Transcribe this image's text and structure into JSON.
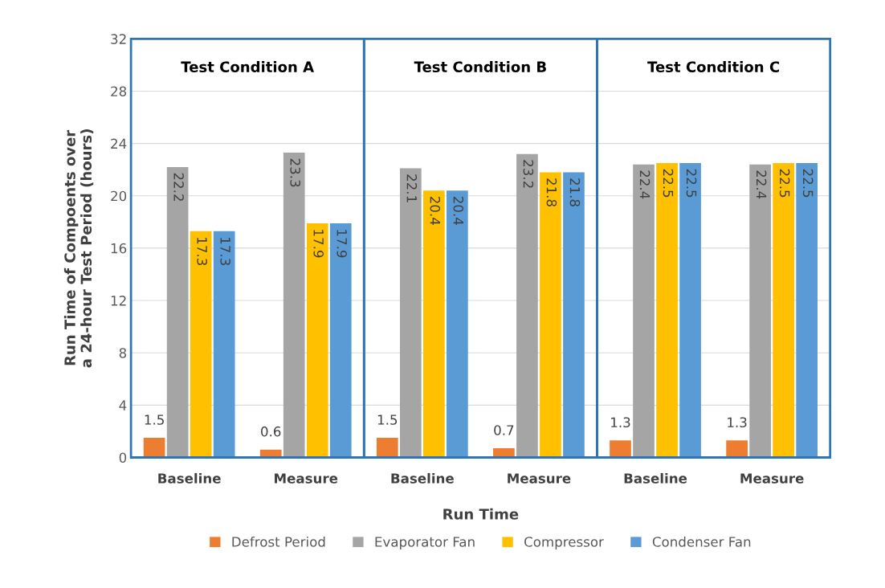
{
  "chart_data": {
    "type": "bar",
    "ylabel": "Run Time of Compoents over\na 24-hour Test Period (hours)",
    "xlabel": "Run Time",
    "categories": [
      "Baseline",
      "Measure",
      "Baseline",
      "Measure",
      "Baseline",
      "Measure"
    ],
    "series": [
      {
        "name": "Defrost Period",
        "color": "#ed7d31",
        "values": [
          1.5,
          0.6,
          1.5,
          0.7,
          1.3,
          1.3
        ]
      },
      {
        "name": "Evaporator Fan",
        "color": "#a5a5a5",
        "values": [
          22.2,
          23.3,
          22.1,
          23.2,
          22.4,
          22.4
        ]
      },
      {
        "name": "Compressor",
        "color": "#ffc000",
        "values": [
          17.3,
          17.9,
          20.4,
          21.8,
          22.5,
          22.5
        ]
      },
      {
        "name": "Condenser Fan",
        "color": "#5b9bd5",
        "values": [
          17.3,
          17.9,
          20.4,
          21.8,
          22.5,
          22.5
        ]
      }
    ],
    "ylim": [
      0,
      32
    ],
    "yticks": [
      0,
      4,
      8,
      12,
      16,
      20,
      24,
      28,
      32
    ],
    "annotations": [
      "Test Condition A",
      "Test Condition B",
      "Test Condition C"
    ],
    "data_labels": true,
    "grid": "y",
    "legend": "bottom"
  }
}
